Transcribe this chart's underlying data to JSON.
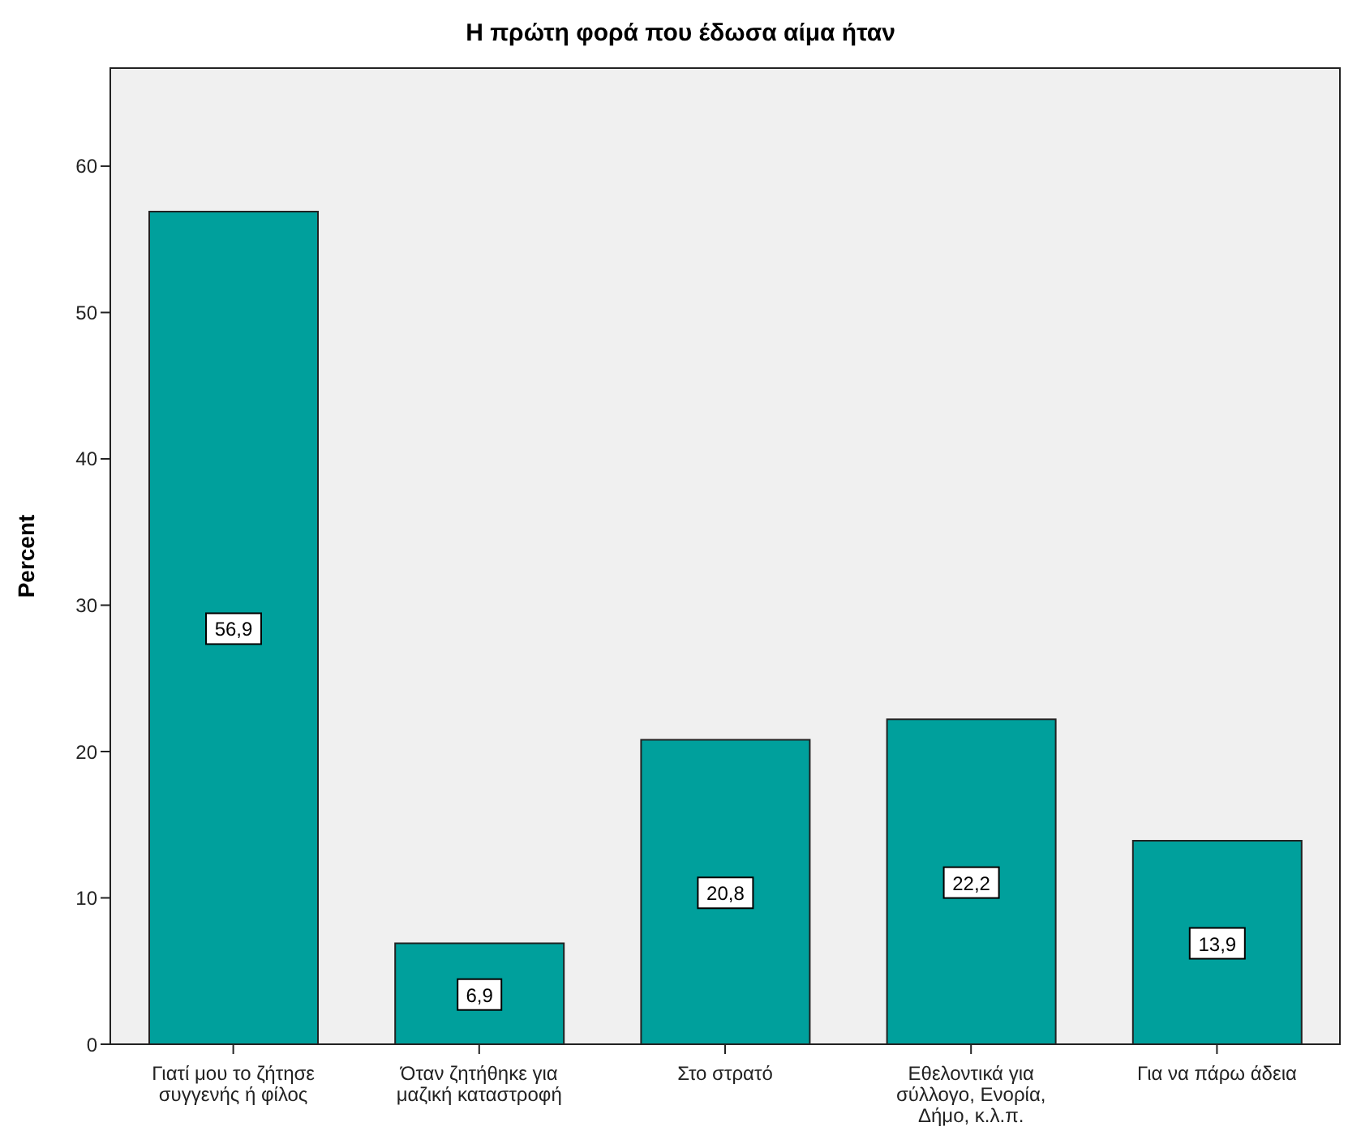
{
  "chart_data": {
    "type": "bar",
    "title": "Η πρώτη φορά που έδωσα αίμα ήταν",
    "ylabel": "Percent",
    "categories": [
      "Γιατί μου το ζήτησε συγγενής ή φίλος",
      "Όταν ζητήθηκε για μαζική καταστροφή",
      "Στο στρατό",
      "Εθελοντικά για σύλλογο, Ενορία, Δήμο, κ.λ.π.",
      "Για να πάρω άδεια"
    ],
    "values": [
      56.9,
      6.9,
      20.8,
      22.2,
      13.9
    ],
    "color": "#00a09c",
    "ylim": [
      0,
      66.7
    ],
    "yticks": [
      0,
      10,
      20,
      30,
      40,
      50,
      60
    ],
    "value_labels": [
      "56,9",
      "6,9",
      "20,8",
      "22,2",
      "13,9"
    ]
  }
}
